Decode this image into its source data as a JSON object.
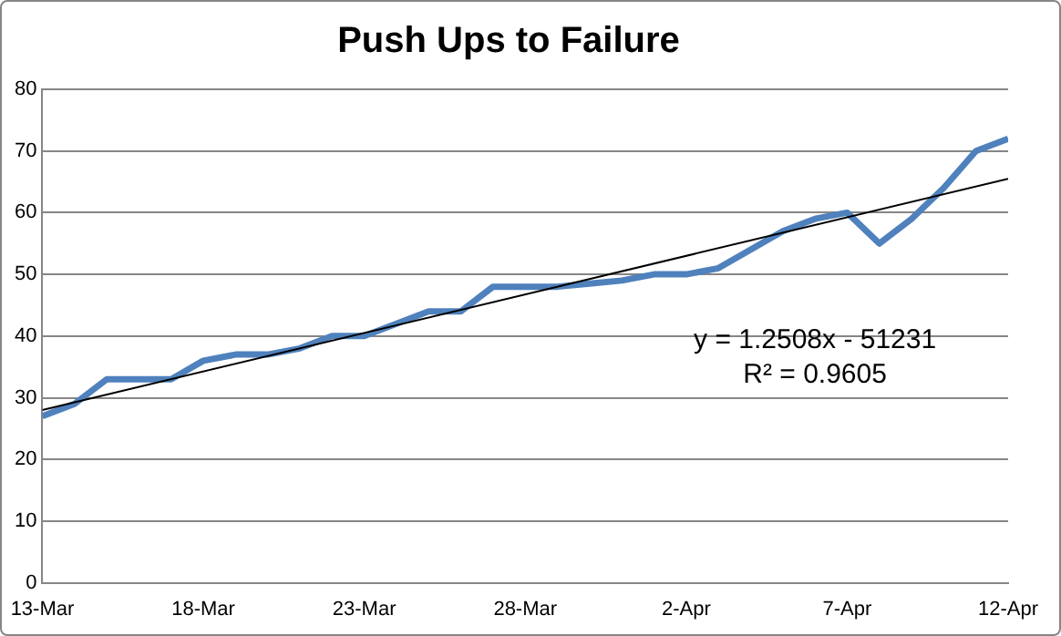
{
  "chart_data": {
    "type": "line",
    "title": "Push Ups to Failure",
    "x": [
      "--03-13",
      "--03-14",
      "--03-15",
      "--03-16",
      "--03-17",
      "--03-18",
      "--03-19",
      "--03-20",
      "--03-21",
      "--03-22",
      "--03-23",
      "--03-24",
      "--03-25",
      "--03-26",
      "--03-27",
      "--03-28",
      "--03-29",
      "--03-30",
      "--03-31",
      "--04-01",
      "--04-02",
      "--04-03",
      "--04-04",
      "--04-05",
      "--04-06",
      "--04-07",
      "--04-08",
      "--04-09",
      "--04-10",
      "--04-11",
      "--04-12"
    ],
    "series": [
      {
        "color": "#4f81bd",
        "values": [
          27,
          29,
          33,
          33,
          33,
          36,
          37,
          37,
          38,
          40,
          40,
          42,
          44,
          44,
          48,
          48,
          48,
          48.5,
          49,
          50,
          50,
          51,
          54,
          57,
          59,
          60,
          55,
          59,
          64,
          70,
          72
        ]
      },
      {
        "color": "#000000",
        "x": [
          "--03-13",
          "--04-12"
        ],
        "values": [
          28,
          65.5
        ]
      }
    ],
    "xlim": [
      "--03-13",
      "--04-12"
    ],
    "xticks": [
      {
        "value": "--03-13",
        "label": "13-Mar"
      },
      {
        "value": "--03-18",
        "label": "18-Mar"
      },
      {
        "value": "--03-23",
        "label": "23-Mar"
      },
      {
        "value": "--03-28",
        "label": "28-Mar"
      },
      {
        "value": "--04-02",
        "label": "2-Apr"
      },
      {
        "value": "--04-07",
        "label": "7-Apr"
      },
      {
        "value": "--04-12",
        "label": "12-Apr"
      }
    ],
    "ylim": [
      0,
      80
    ],
    "yticks": [
      0,
      10,
      20,
      30,
      40,
      50,
      60,
      70,
      80
    ],
    "grid": "y",
    "legend": false,
    "marker": "none",
    "line_style": "solid",
    "annotations": [
      "y = 1.2508x - 51231",
      "R² = 0.9605"
    ]
  }
}
